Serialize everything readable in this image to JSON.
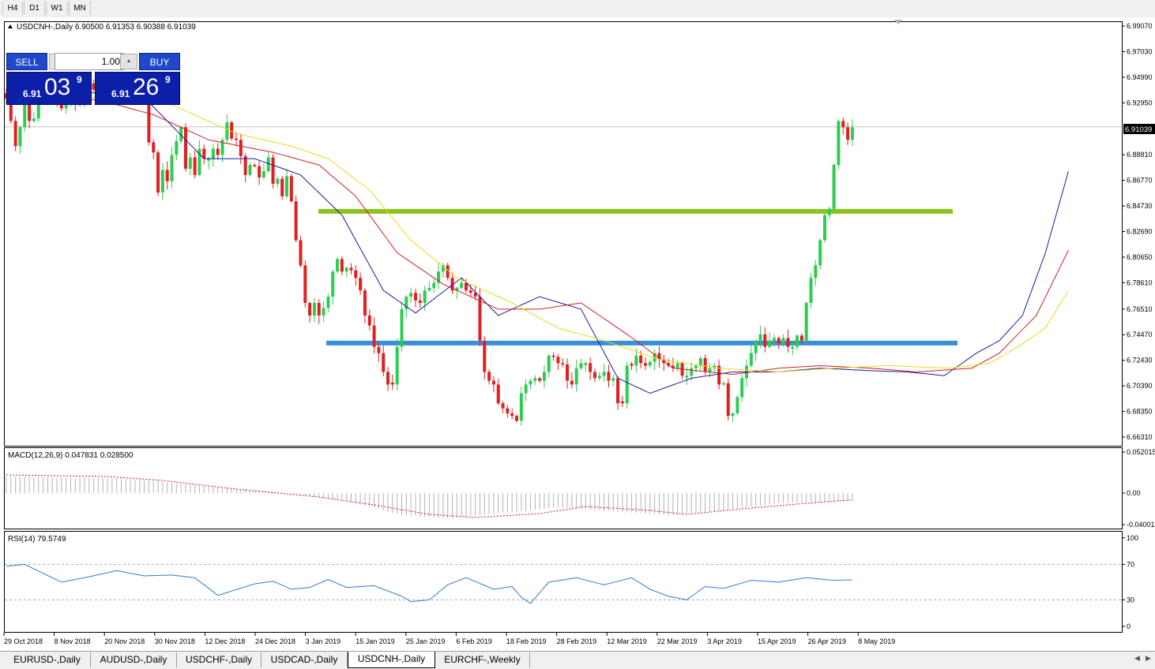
{
  "toolbar": {
    "timeframes": [
      "H4",
      "D1",
      "W1",
      "MN"
    ]
  },
  "chart_data": {
    "type": "candlestick",
    "symbol_header": "USDCNH-,Daily  6.90500 6.91353 6.90388 6.91039",
    "current_price_label": "6.91039",
    "price_axis": {
      "ylim": [
        6.6631,
        6.9907
      ],
      "ticks": [
        "6.99070",
        "6.97030",
        "6.94990",
        "6.92950",
        "6.88810",
        "6.86770",
        "6.84730",
        "6.82690",
        "6.80650",
        "6.78610",
        "6.76510",
        "6.74470",
        "6.72430",
        "6.70390",
        "6.68350",
        "6.66310"
      ]
    },
    "date_labels": [
      "29 Oct 2018",
      "8 Nov 2018",
      "20 Nov 2018",
      "30 Nov 2018",
      "12 Dec 2018",
      "24 Dec 2018",
      "3 Jan 2019",
      "15 Jan 2019",
      "25 Jan 2019",
      "6 Feb 2019",
      "18 Feb 2019",
      "28 Feb 2019",
      "12 Mar 2019",
      "22 Mar 2019",
      "3 Apr 2019",
      "15 Apr 2019",
      "26 Apr 2019",
      "8 May 2019"
    ],
    "closes": [
      6.933,
      6.915,
      6.895,
      6.91,
      6.929,
      6.915,
      6.917,
      6.938,
      6.938,
      6.938,
      6.94,
      6.93,
      6.925,
      6.929,
      6.936,
      6.93,
      6.929,
      6.945,
      6.945,
      6.94,
      6.943,
      6.94,
      6.938,
      6.942,
      6.933,
      6.933,
      6.935,
      6.942,
      6.94,
      6.938,
      6.938,
      6.898,
      6.89,
      6.858,
      6.876,
      6.867,
      6.888,
      6.899,
      6.91,
      6.877,
      6.886,
      6.872,
      6.893,
      6.885,
      6.885,
      6.893,
      6.888,
      6.9,
      6.914,
      6.901,
      6.9,
      6.887,
      6.872,
      6.88,
      6.879,
      6.87,
      6.875,
      6.886,
      6.865,
      6.869,
      6.855,
      6.871,
      6.851,
      6.82,
      6.8,
      6.77,
      6.76,
      6.77,
      6.76,
      6.766,
      6.775,
      6.795,
      6.805,
      6.795,
      6.798,
      6.796,
      6.79,
      6.78,
      6.76,
      6.752,
      6.735,
      6.73,
      6.715,
      6.705,
      6.705,
      6.735,
      6.765,
      6.775,
      6.778,
      6.772,
      6.77,
      6.78,
      6.782,
      6.786,
      6.795,
      6.8,
      6.79,
      6.78,
      6.782,
      6.786,
      6.78,
      6.778,
      6.775,
      6.74,
      6.715,
      6.708,
      6.705,
      6.69,
      6.686,
      6.682,
      6.68,
      6.676,
      6.698,
      6.705,
      6.708,
      6.71,
      6.708,
      6.715,
      6.728,
      6.727,
      6.722,
      6.721,
      6.708,
      6.705,
      6.718,
      6.722,
      6.722,
      6.715,
      6.71,
      6.712,
      6.715,
      6.708,
      6.71,
      6.69,
      6.69,
      6.72,
      6.72,
      6.728,
      6.722,
      6.72,
      6.723,
      6.73,
      6.725,
      6.722,
      6.72,
      6.718,
      6.722,
      6.712,
      6.712,
      6.718,
      6.72,
      6.726,
      6.715,
      6.718,
      6.72,
      6.705,
      6.706,
      6.68,
      6.682,
      6.695,
      6.71,
      6.72,
      6.73,
      6.74,
      6.745,
      6.735,
      6.74,
      6.742,
      6.738,
      6.742,
      6.735,
      6.735,
      6.744,
      6.74,
      6.77,
      6.79,
      6.8,
      6.82,
      6.84,
      6.845,
      6.88,
      6.915,
      6.91,
      6.9,
      6.91
    ],
    "main_lines": [
      {
        "name": "blue-ma",
        "color": "#1a1aa0",
        "knots": [
          [
            6.938,
            0
          ],
          [
            6.938,
            18
          ],
          [
            6.93,
            31
          ],
          [
            6.885,
            43
          ],
          [
            6.885,
            54
          ],
          [
            6.872,
            64
          ],
          [
            6.84,
            73
          ],
          [
            6.78,
            82
          ],
          [
            6.762,
            89
          ],
          [
            6.79,
            99
          ],
          [
            6.76,
            107
          ],
          [
            6.775,
            116
          ],
          [
            6.765,
            125
          ],
          [
            6.71,
            133
          ],
          [
            6.698,
            140
          ],
          [
            6.71,
            149
          ],
          [
            6.715,
            158
          ],
          [
            6.715,
            168
          ],
          [
            6.718,
            177
          ],
          [
            6.716,
            188
          ],
          [
            6.715,
            196
          ],
          [
            6.712,
            204
          ],
          [
            6.73,
            211
          ],
          [
            6.74,
            216
          ],
          [
            6.76,
            221
          ],
          [
            6.81,
            226
          ],
          [
            6.875,
            231
          ]
        ]
      },
      {
        "name": "red-ma",
        "color": "#cc2020",
        "knots": [
          [
            6.93,
            0
          ],
          [
            6.932,
            20
          ],
          [
            6.92,
            32
          ],
          [
            6.9,
            44
          ],
          [
            6.89,
            58
          ],
          [
            6.88,
            68
          ],
          [
            6.855,
            76
          ],
          [
            6.81,
            85
          ],
          [
            6.785,
            95
          ],
          [
            6.765,
            107
          ],
          [
            6.765,
            116
          ],
          [
            6.77,
            125
          ],
          [
            6.745,
            135
          ],
          [
            6.718,
            145
          ],
          [
            6.713,
            158
          ],
          [
            6.718,
            168
          ],
          [
            6.72,
            177
          ],
          [
            6.718,
            188
          ],
          [
            6.715,
            198
          ],
          [
            6.718,
            210
          ],
          [
            6.73,
            216
          ],
          [
            6.76,
            224
          ],
          [
            6.812,
            231
          ]
        ]
      },
      {
        "name": "yellow-ma",
        "color": "#e8d820",
        "knots": [
          [
            6.93,
            0
          ],
          [
            6.935,
            24
          ],
          [
            6.928,
            36
          ],
          [
            6.905,
            50
          ],
          [
            6.895,
            62
          ],
          [
            6.885,
            70
          ],
          [
            6.86,
            79
          ],
          [
            6.82,
            88
          ],
          [
            6.79,
            98
          ],
          [
            6.77,
            110
          ],
          [
            6.75,
            120
          ],
          [
            6.74,
            130
          ],
          [
            6.725,
            142
          ],
          [
            6.718,
            155
          ],
          [
            6.715,
            168
          ],
          [
            6.718,
            180
          ],
          [
            6.72,
            192
          ],
          [
            6.718,
            205
          ],
          [
            6.722,
            214
          ],
          [
            6.735,
            220
          ],
          [
            6.75,
            226
          ],
          [
            6.78,
            231
          ]
        ]
      }
    ],
    "horizontal_levels": [
      {
        "name": "resistance-line",
        "price": 6.843,
        "color": "#8dc21f"
      },
      {
        "name": "support-line",
        "price": 6.738,
        "color": "#3b8fd6"
      }
    ],
    "macd": {
      "header": "MACD(12,26,9) 0.047831 0.028500",
      "ticks": [
        "0.052015",
        "0.00",
        "-0.040019"
      ],
      "ylim": [
        -0.043,
        0.055
      ],
      "hist_knots": [
        [
          0.021,
          0
        ],
        [
          0.019,
          20
        ],
        [
          0.017,
          30
        ],
        [
          0.007,
          46
        ],
        [
          0.001,
          60
        ],
        [
          -0.01,
          74
        ],
        [
          -0.028,
          86
        ],
        [
          -0.032,
          96
        ],
        [
          -0.024,
          110
        ],
        [
          -0.018,
          120
        ],
        [
          -0.024,
          134
        ],
        [
          -0.028,
          144
        ],
        [
          -0.022,
          156
        ],
        [
          -0.013,
          168
        ],
        [
          -0.009,
          188
        ],
        [
          -0.001,
          205
        ],
        [
          0.005,
          214
        ],
        [
          0.02,
          222
        ],
        [
          0.04,
          228
        ],
        [
          0.052,
          231
        ]
      ],
      "signal_knots": [
        [
          0.023,
          0
        ],
        [
          0.021,
          22
        ],
        [
          0.016,
          34
        ],
        [
          0.005,
          50
        ],
        [
          -0.005,
          68
        ],
        [
          -0.015,
          80
        ],
        [
          -0.027,
          92
        ],
        [
          -0.031,
          102
        ],
        [
          -0.026,
          116
        ],
        [
          -0.017,
          126
        ],
        [
          -0.022,
          140
        ],
        [
          -0.027,
          148
        ],
        [
          -0.02,
          160
        ],
        [
          -0.013,
          174
        ],
        [
          -0.006,
          190
        ],
        [
          -0.004,
          204
        ],
        [
          0.002,
          214
        ],
        [
          0.008,
          222
        ],
        [
          0.018,
          228
        ],
        [
          0.0285,
          231
        ]
      ]
    },
    "rsi": {
      "header": "RSI(14) 79.5749",
      "ticks": [
        "100",
        "70",
        "30",
        "0"
      ],
      "levels": [
        70,
        30
      ],
      "knots": [
        [
          68,
          0
        ],
        [
          70,
          4
        ],
        [
          60,
          8
        ],
        [
          50,
          12
        ],
        [
          56,
          18
        ],
        [
          63,
          24
        ],
        [
          57,
          30
        ],
        [
          58,
          36
        ],
        [
          55,
          41
        ],
        [
          35,
          46
        ],
        [
          48,
          54
        ],
        [
          51,
          58
        ],
        [
          42,
          62
        ],
        [
          44,
          66
        ],
        [
          53,
          70
        ],
        [
          44,
          74
        ],
        [
          46,
          80
        ],
        [
          34,
          86
        ],
        [
          28,
          88
        ],
        [
          30,
          92
        ],
        [
          47,
          96
        ],
        [
          55,
          100
        ],
        [
          42,
          106
        ],
        [
          45,
          110
        ],
        [
          33,
          112
        ],
        [
          26,
          114
        ],
        [
          50,
          118
        ],
        [
          55,
          124
        ],
        [
          47,
          130
        ],
        [
          55,
          136
        ],
        [
          42,
          140
        ],
        [
          34,
          144
        ],
        [
          30,
          148
        ],
        [
          45,
          152
        ],
        [
          43,
          156
        ],
        [
          52,
          162
        ],
        [
          50,
          168
        ],
        [
          55,
          174
        ],
        [
          52,
          180
        ],
        [
          53,
          186
        ],
        [
          48,
          190
        ],
        [
          37,
          194
        ],
        [
          50,
          198
        ],
        [
          58,
          204
        ],
        [
          62,
          208
        ],
        [
          55,
          212
        ],
        [
          62,
          214
        ],
        [
          72,
          216
        ],
        [
          74,
          220
        ],
        [
          85,
          224
        ],
        [
          84,
          226
        ],
        [
          79.57,
          231
        ]
      ]
    }
  },
  "trade_panel": {
    "sell_label": "SELL",
    "buy_label": "BUY",
    "lot_value": "1.00",
    "sell_small": "6.91",
    "sell_big": "03",
    "sell_sup": "9",
    "buy_small": "6.91",
    "buy_big": "26",
    "buy_sup": "9"
  },
  "tabs": [
    "EURUSD-,Daily",
    "AUDUSD-,Daily",
    "USDCHF-,Daily",
    "USDCAD-,Daily",
    "USDCNH-,Daily",
    "EURCHF-,Weekly"
  ],
  "active_tab": "USDCNH-,Daily",
  "colors": {
    "bull": "#2ecc52",
    "bear": "#e02020",
    "axis": "#000000",
    "grid_dash": "#a8a8a8"
  }
}
